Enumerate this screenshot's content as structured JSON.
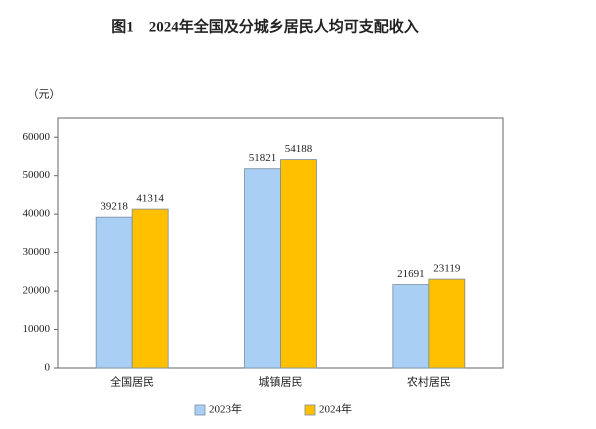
{
  "chart_data": {
    "type": "bar",
    "title": "图1　2024年全国及分城乡居民人均可支配收入",
    "y_unit": "（元）",
    "categories": [
      "全国居民",
      "城镇居民",
      "农村居民"
    ],
    "series": [
      {
        "name": "2023年",
        "color": "#a9cff5",
        "values": [
          39218,
          51821,
          21691
        ]
      },
      {
        "name": "2024年",
        "color": "#ffc000",
        "values": [
          41314,
          54188,
          23119
        ]
      }
    ],
    "ylim": [
      0,
      65000
    ],
    "yticks": [
      0,
      10000,
      20000,
      30000,
      40000,
      50000,
      60000
    ],
    "legend": "bottom"
  }
}
